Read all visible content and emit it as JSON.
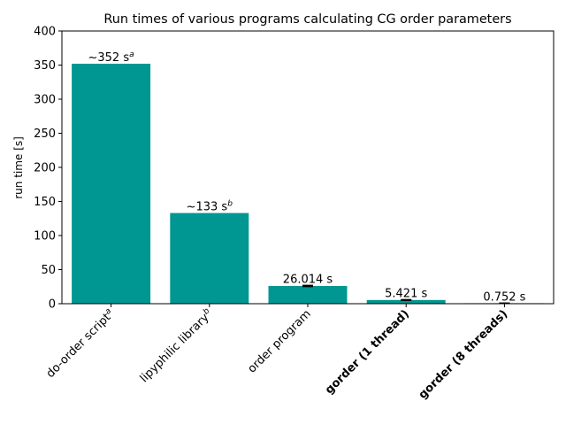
{
  "chart_data": {
    "type": "bar",
    "title": "Run times of various programs calculating CG order parameters",
    "xlabel": "",
    "ylabel": "run time [s]",
    "ylim": [
      0,
      400
    ],
    "yticks": [
      0,
      50,
      100,
      150,
      200,
      250,
      300,
      350,
      400
    ],
    "grid": false,
    "bar_color": "#009691",
    "categories": [
      {
        "label": "do-order script",
        "sup": "a",
        "bold": false
      },
      {
        "label": "lipyphilic library",
        "sup": "b",
        "bold": false
      },
      {
        "label": "order program",
        "sup": "",
        "bold": false
      },
      {
        "label": "gorder (1 thread)",
        "sup": "",
        "bold": true
      },
      {
        "label": "gorder (8 threads)",
        "sup": "",
        "bold": true
      }
    ],
    "values": [
      352,
      133,
      26.014,
      5.421,
      0.752
    ],
    "errors": [
      null,
      null,
      0.8,
      0.5,
      0.05
    ],
    "data_labels": [
      {
        "text": "~352 s",
        "sup": "a"
      },
      {
        "text": "~133 s",
        "sup": "b"
      },
      {
        "text": "26.014 s",
        "sup": ""
      },
      {
        "text": "5.421 s",
        "sup": ""
      },
      {
        "text": "0.752 s",
        "sup": ""
      }
    ]
  }
}
